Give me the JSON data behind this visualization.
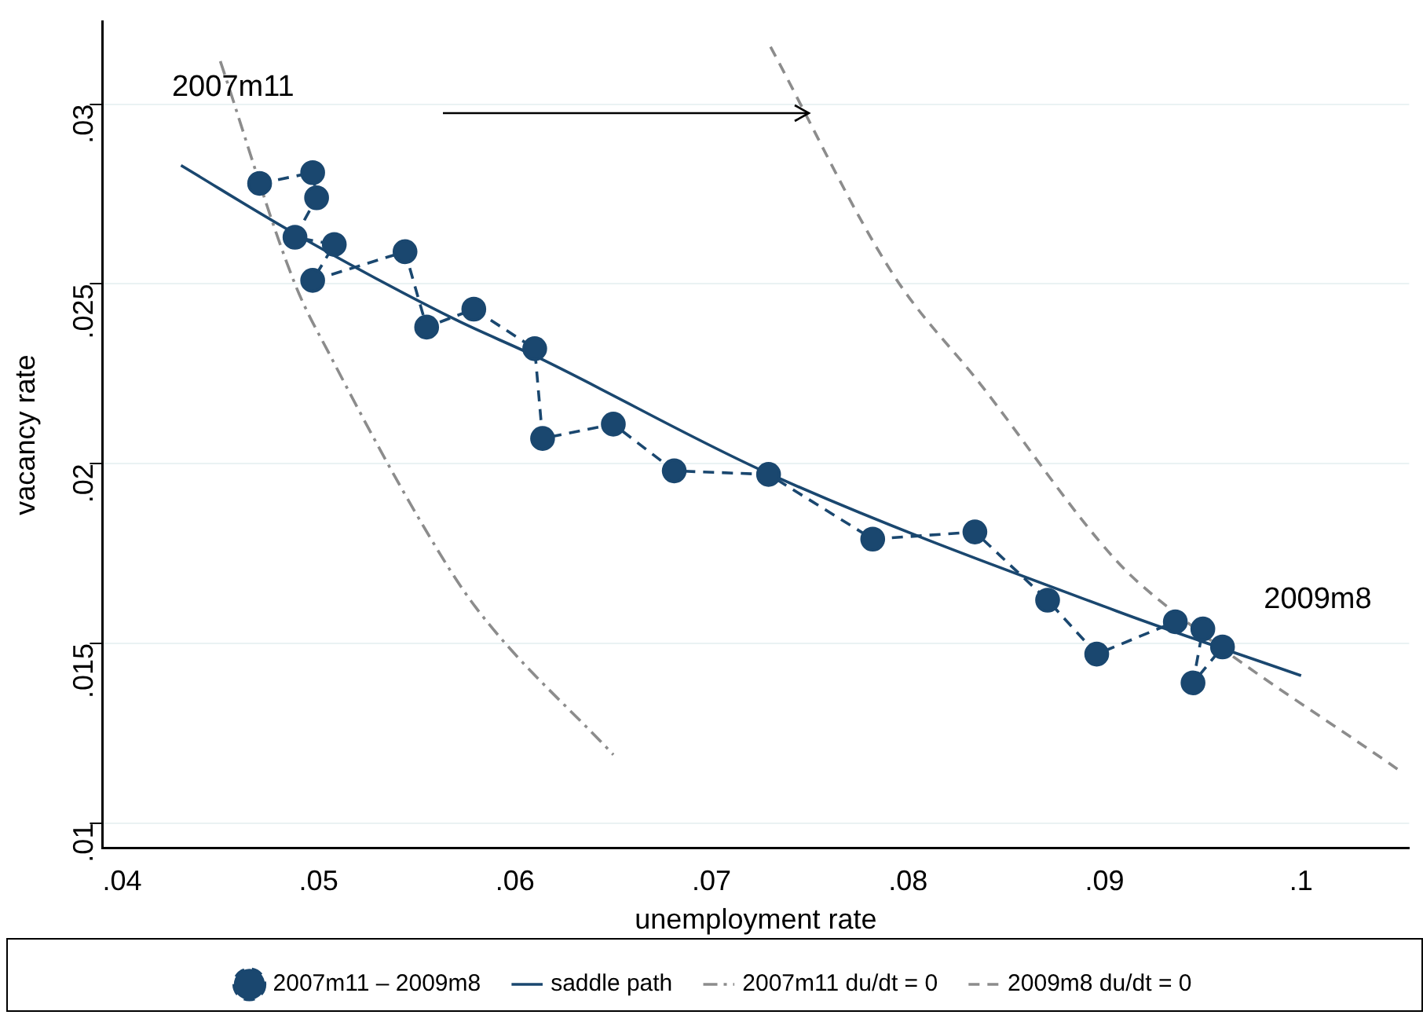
{
  "chart_data": {
    "type": "line",
    "xlabel": "unemployment rate",
    "ylabel": "vacancy rate",
    "xlim": [
      0.039,
      0.1055
    ],
    "ylim": [
      0.0093,
      0.0323
    ],
    "xticks": [
      {
        "value": 0.04,
        "label": ".04"
      },
      {
        "value": 0.05,
        "label": ".05"
      },
      {
        "value": 0.06,
        "label": ".06"
      },
      {
        "value": 0.07,
        "label": ".07"
      },
      {
        "value": 0.08,
        "label": ".08"
      },
      {
        "value": 0.09,
        "label": ".09"
      },
      {
        "value": 0.1,
        "label": ".1"
      }
    ],
    "yticks": [
      {
        "value": 0.01,
        "label": ".01"
      },
      {
        "value": 0.015,
        "label": ".015"
      },
      {
        "value": 0.02,
        "label": ".02"
      },
      {
        "value": 0.025,
        "label": ".025"
      },
      {
        "value": 0.03,
        "label": ".03"
      }
    ],
    "grid": "y",
    "legend": "bottom",
    "series": [
      {
        "name": "2007m11 – 2009m8",
        "color": "#1a476f",
        "marker": "circle",
        "line_style": "dashed",
        "x": [
          0.047,
          0.0497,
          0.0499,
          0.0488,
          0.0508,
          0.0497,
          0.0544,
          0.0555,
          0.0579,
          0.061,
          0.0614,
          0.065,
          0.0681,
          0.0729,
          0.0782,
          0.0834,
          0.0871,
          0.0896,
          0.0936,
          0.095,
          0.0945,
          0.096
        ],
        "values": [
          0.0278,
          0.0281,
          0.0274,
          0.0263,
          0.0261,
          0.0251,
          0.0259,
          0.0238,
          0.0243,
          0.0232,
          0.0207,
          0.0211,
          0.0198,
          0.0197,
          0.0179,
          0.0181,
          0.0162,
          0.0147,
          0.0156,
          0.0154,
          0.0139,
          0.0149
        ]
      },
      {
        "name": "saddle path",
        "color": "#1a476f",
        "marker": "none",
        "line_style": "solid",
        "x": [
          0.043,
          0.0488,
          0.057,
          0.061,
          0.073,
          0.0906,
          0.1
        ],
        "values": [
          0.0283,
          0.0264,
          0.024,
          0.023,
          0.0197,
          0.0159,
          0.0141
        ]
      },
      {
        "name": "2007m11 du/dt = 0",
        "color": "#8c8c8c",
        "marker": "none",
        "line_style": "dashdot",
        "x": [
          0.045,
          0.0488,
          0.0506,
          0.0554,
          0.058,
          0.065
        ],
        "values": [
          0.0312,
          0.025,
          0.023,
          0.0182,
          0.016,
          0.0119
        ]
      },
      {
        "name": "2009m8 du/dt = 0",
        "color": "#8c8c8c",
        "marker": "none",
        "line_style": "dashed",
        "x": [
          0.073,
          0.0792,
          0.0837,
          0.0906,
          0.0937,
          0.1049
        ],
        "values": [
          0.0316,
          0.0253,
          0.0222,
          0.0173,
          0.0158,
          0.0115
        ]
      }
    ],
    "annotations": [
      "2007m11",
      "2009m8"
    ]
  }
}
